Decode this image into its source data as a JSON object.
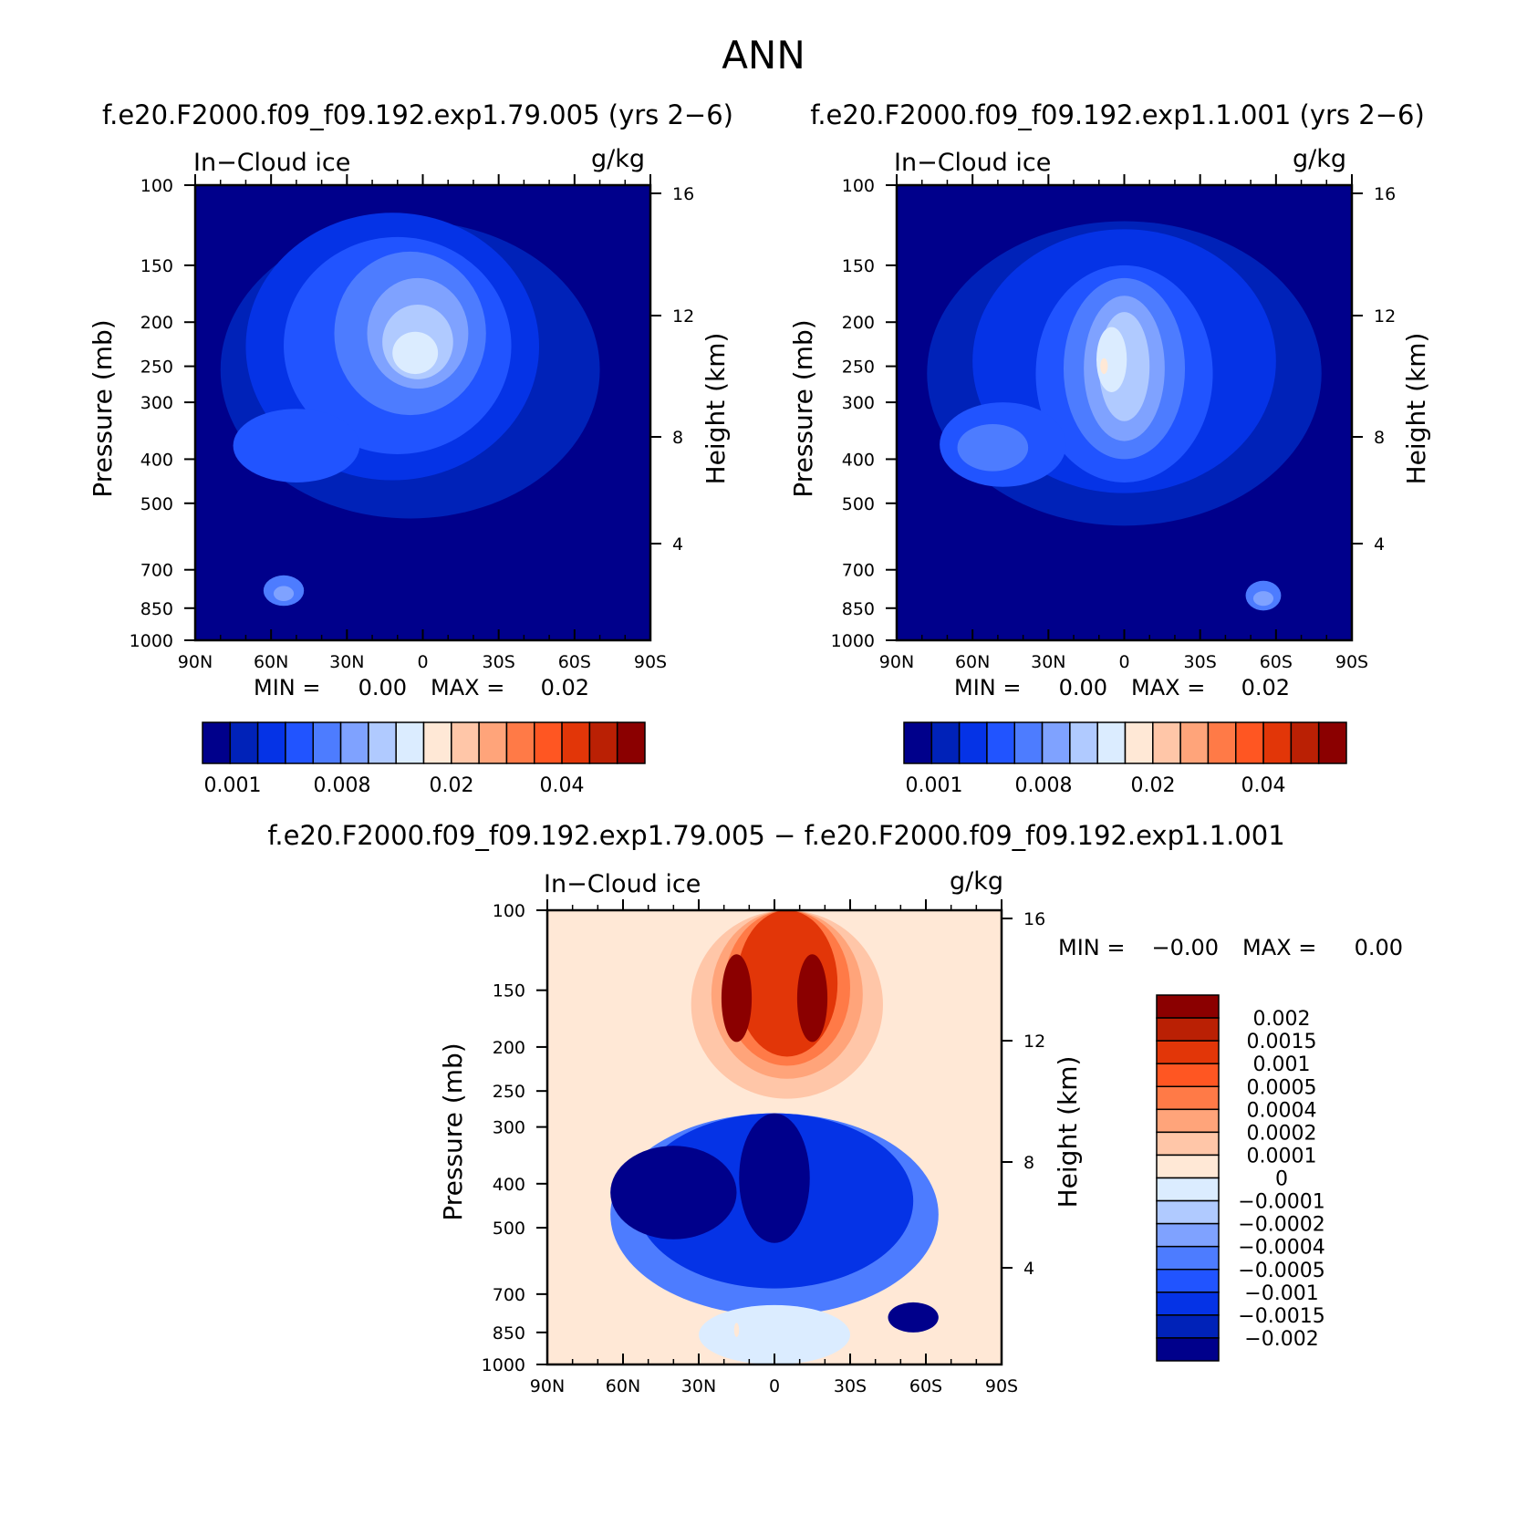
{
  "figure": {
    "title": "ANN"
  },
  "chart_data": [
    {
      "type": "heatmap",
      "title": "f.e20.F2000.f09_f09.192.exp1.79.005 (yrs 2−6)",
      "field_label": "In−Cloud ice",
      "units": "g/kg",
      "xlabel": "",
      "ylabel": "Pressure (mb)",
      "ylabel_right": "Height (km)",
      "x_ticks": [
        "90N",
        "60N",
        "30N",
        "0",
        "30S",
        "60S",
        "90S"
      ],
      "y_ticks": [
        "100",
        "150",
        "200",
        "250",
        "300",
        "400",
        "500",
        "700",
        "850",
        "1000"
      ],
      "y2_ticks": [
        "16",
        "12",
        "8",
        "4"
      ],
      "min_label": "MIN =",
      "min_value": "0.00",
      "max_label": "MAX =",
      "max_value": "0.02",
      "colorbar_labels": [
        "0.001",
        "0.008",
        "0.02",
        "0.04"
      ],
      "colorbar_colors": [
        "#00008b",
        "#0022b8",
        "#0533e6",
        "#2154ff",
        "#4d7cff",
        "#7fa2ff",
        "#b0caff",
        "#dbecff",
        "#ffe8d6",
        "#ffc6a8",
        "#ffa47a",
        "#ff7a47",
        "#ff5622",
        "#e23608",
        "#ba2004",
        "#8b0000"
      ],
      "levels": [
        {
          "color_index": 1,
          "cx": -5,
          "cp": 330,
          "rx": 75,
          "ry": 210
        },
        {
          "color_index": 2,
          "cx": -12,
          "cp": 280,
          "rx": 58,
          "ry": 165
        },
        {
          "color_index": 3,
          "cx": -10,
          "cp": 260,
          "rx": 45,
          "ry": 130
        },
        {
          "color_index": 4,
          "cx": -5,
          "cp": 230,
          "rx": 30,
          "ry": 90
        },
        {
          "color_index": 5,
          "cx": -2,
          "cp": 220,
          "rx": 20,
          "ry": 60
        },
        {
          "color_index": 6,
          "cx": -2,
          "cp": 225,
          "rx": 14,
          "ry": 42
        },
        {
          "color_index": 7,
          "cx": -3,
          "cp": 235,
          "rx": 9,
          "ry": 25
        },
        {
          "color_index": 3,
          "cx": -50,
          "cp": 380,
          "rx": 25,
          "ry": 70
        },
        {
          "color_index": 4,
          "cx": -55,
          "cp": 780,
          "rx": 8,
          "ry": 60
        },
        {
          "color_index": 5,
          "cx": -55,
          "cp": 790,
          "rx": 4,
          "ry": 30
        }
      ]
    },
    {
      "type": "heatmap",
      "title": "f.e20.F2000.f09_f09.192.exp1.1.001 (yrs 2−6)",
      "field_label": "In−Cloud ice",
      "units": "g/kg",
      "xlabel": "",
      "ylabel": "Pressure (mb)",
      "ylabel_right": "Height (km)",
      "x_ticks": [
        "90N",
        "60N",
        "30N",
        "0",
        "30S",
        "60S",
        "90S"
      ],
      "y_ticks": [
        "100",
        "150",
        "200",
        "250",
        "300",
        "400",
        "500",
        "700",
        "850",
        "1000"
      ],
      "y2_ticks": [
        "16",
        "12",
        "8",
        "4"
      ],
      "min_label": "MIN =",
      "min_value": "0.00",
      "max_label": "MAX =",
      "max_value": "0.02",
      "colorbar_labels": [
        "0.001",
        "0.008",
        "0.02",
        "0.04"
      ],
      "colorbar_colors": [
        "#00008b",
        "#0022b8",
        "#0533e6",
        "#2154ff",
        "#4d7cff",
        "#7fa2ff",
        "#b0caff",
        "#dbecff",
        "#ffe8d6",
        "#ffc6a8",
        "#ffa47a",
        "#ff7a47",
        "#ff5622",
        "#e23608",
        "#ba2004",
        "#8b0000"
      ],
      "levels": [
        {
          "color_index": 1,
          "cx": 0,
          "cp": 340,
          "rx": 78,
          "ry": 220
        },
        {
          "color_index": 2,
          "cx": 0,
          "cp": 300,
          "rx": 60,
          "ry": 175
        },
        {
          "color_index": 3,
          "cx": 0,
          "cp": 300,
          "rx": 35,
          "ry": 150
        },
        {
          "color_index": 4,
          "cx": 0,
          "cp": 280,
          "rx": 24,
          "ry": 120
        },
        {
          "color_index": 5,
          "cx": 0,
          "cp": 270,
          "rx": 16,
          "ry": 95
        },
        {
          "color_index": 6,
          "cx": 0,
          "cp": 260,
          "rx": 10,
          "ry": 70
        },
        {
          "color_index": 7,
          "cx": -5,
          "cp": 245,
          "rx": 6,
          "ry": 40
        },
        {
          "color_index": 3,
          "cx": -48,
          "cp": 380,
          "rx": 25,
          "ry": 80
        },
        {
          "color_index": 4,
          "cx": -52,
          "cp": 380,
          "rx": 14,
          "ry": 45
        },
        {
          "color_index": 4,
          "cx": 55,
          "cp": 800,
          "rx": 7,
          "ry": 60
        },
        {
          "color_index": 5,
          "cx": 55,
          "cp": 810,
          "rx": 4,
          "ry": 30
        },
        {
          "color_index": 8,
          "cx": -8,
          "cp": 250,
          "rx": 1.5,
          "ry": 10
        }
      ]
    },
    {
      "type": "heatmap",
      "title": "f.e20.F2000.f09_f09.192.exp1.79.005 − f.e20.F2000.f09_f09.192.exp1.1.001",
      "field_label": "In−Cloud ice",
      "units": "g/kg",
      "xlabel": "",
      "ylabel": "Pressure (mb)",
      "ylabel_right": "Height (km)",
      "x_ticks": [
        "90N",
        "60N",
        "30N",
        "0",
        "30S",
        "60S",
        "90S"
      ],
      "y_ticks": [
        "100",
        "150",
        "200",
        "250",
        "300",
        "400",
        "500",
        "700",
        "850",
        "1000"
      ],
      "y2_ticks": [
        "16",
        "12",
        "8",
        "4"
      ],
      "min_label": "MIN =",
      "min_value": "−0.00",
      "max_label": "MAX =",
      "max_value": "0.00",
      "colorbar_labels": [
        "0.002",
        "0.0015",
        "0.001",
        "0.0005",
        "0.0004",
        "0.0002",
        "0.0001",
        "0",
        "−0.0001",
        "−0.0002",
        "−0.0004",
        "−0.0005",
        "−0.001",
        "−0.0015",
        "−0.002"
      ],
      "colorbar_colors": [
        "#8b0000",
        "#ba2004",
        "#e23608",
        "#ff5622",
        "#ff7a47",
        "#ffa47a",
        "#ffc6a8",
        "#ffe8d6",
        "#dbecff",
        "#b0caff",
        "#7fa2ff",
        "#4d7cff",
        "#2154ff",
        "#0533e6",
        "#0022b8",
        "#00008b"
      ],
      "levels": [
        {
          "color_index": 6,
          "cx": 5,
          "cp": 160,
          "rx": 38,
          "ry": 100
        },
        {
          "color_index": 5,
          "cx": 5,
          "cp": 150,
          "rx": 30,
          "ry": 85
        },
        {
          "color_index": 4,
          "cx": 5,
          "cp": 150,
          "rx": 25,
          "ry": 70
        },
        {
          "color_index": 2,
          "cx": 5,
          "cp": 150,
          "rx": 20,
          "ry": 60
        },
        {
          "color_index": 0,
          "cx": -15,
          "cp": 160,
          "rx": 6,
          "ry": 35
        },
        {
          "color_index": 0,
          "cx": 15,
          "cp": 160,
          "rx": 6,
          "ry": 35
        },
        {
          "color_index": 11,
          "cx": 0,
          "cp": 530,
          "rx": 65,
          "ry": 250
        },
        {
          "color_index": 13,
          "cx": 0,
          "cp": 480,
          "rx": 55,
          "ry": 200
        },
        {
          "color_index": 15,
          "cx": -40,
          "cp": 430,
          "rx": 25,
          "ry": 100
        },
        {
          "color_index": 15,
          "cx": 0,
          "cp": 410,
          "rx": 14,
          "ry": 130
        },
        {
          "color_index": 15,
          "cx": 55,
          "cp": 790,
          "rx": 10,
          "ry": 60
        },
        {
          "color_index": 8,
          "cx": 0,
          "cp": 880,
          "rx": 30,
          "ry": 140
        },
        {
          "color_index": 7,
          "cx": -15,
          "cp": 840,
          "rx": 1,
          "ry": 30
        }
      ]
    }
  ]
}
